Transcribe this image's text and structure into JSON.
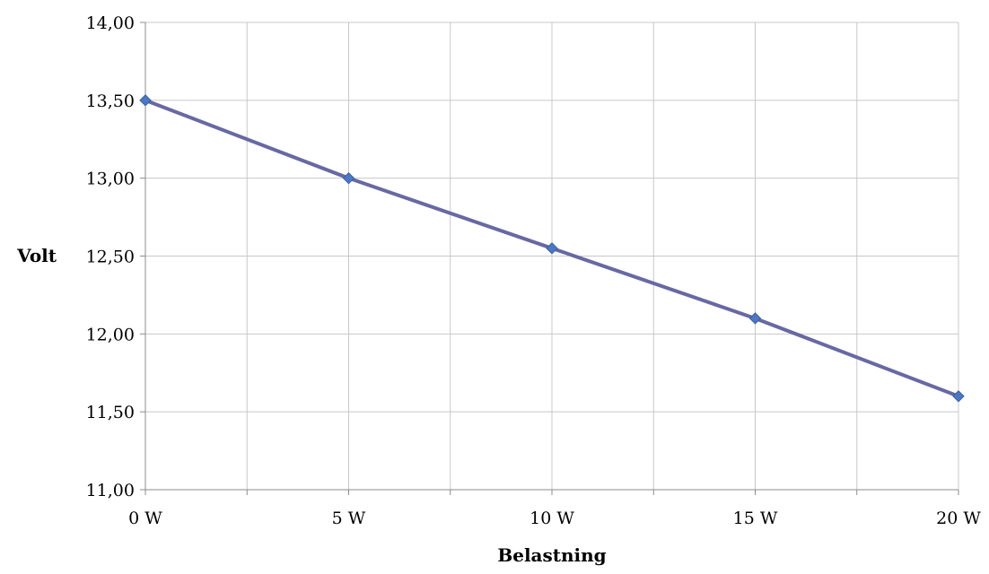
{
  "chart_data": {
    "type": "line",
    "title": "",
    "xlabel": "Belastning",
    "ylabel": "Volt",
    "x": [
      0,
      5,
      10,
      15,
      20
    ],
    "x_tick_labels": [
      "0 W",
      "5 W",
      "10 W",
      "15 W",
      "20 W"
    ],
    "series": [
      {
        "values": [
          13.5,
          13.0,
          12.55,
          12.1,
          11.6
        ]
      }
    ],
    "ylim": [
      11.0,
      14.0
    ],
    "y_ticks": [
      11.0,
      11.5,
      12.0,
      12.5,
      13.0,
      13.5,
      14.0
    ],
    "y_tick_labels": [
      "11,00",
      "11,50",
      "12,00",
      "12,50",
      "13,00",
      "13,50",
      "14,00"
    ],
    "xlim": [
      0,
      20
    ],
    "x_gridlines": [
      0,
      2.5,
      5,
      7.5,
      10,
      12.5,
      15,
      17.5,
      20
    ],
    "grid": true,
    "legend": "none",
    "line_color": "#6868a4",
    "marker": "diamond",
    "marker_color": "#4a78c6",
    "grid_color": "#c8c8c8"
  }
}
